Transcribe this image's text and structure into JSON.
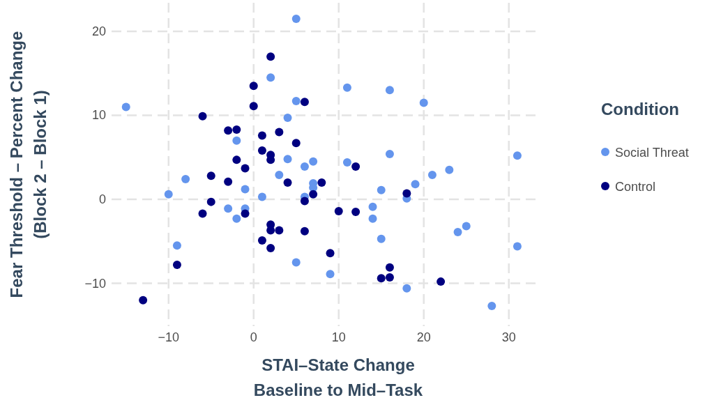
{
  "chart_data": {
    "type": "scatter",
    "xlabel": "STAI–State Change\nBaseline to Mid–Task",
    "ylabel": "Fear Threshold – Percent Change\n(Block 2 – Block 1)",
    "legend_title": "Condition",
    "legend": "right",
    "grid": true,
    "marker": "circle",
    "xlim": [
      -16.7,
      33.3
    ],
    "xticks": [
      -10,
      0,
      10,
      20,
      30
    ],
    "ylim": [
      -15.1,
      23.4
    ],
    "yticks": [
      -10,
      0,
      10,
      20
    ],
    "series": [
      {
        "name": "Social Threat",
        "color": "#6495ed",
        "x": [
          -15,
          5,
          2,
          11,
          16,
          20,
          5,
          4,
          -2,
          4,
          7,
          11,
          16,
          31,
          3,
          6,
          23,
          21,
          19,
          15,
          7,
          7,
          -8,
          -10,
          -1,
          1,
          6,
          18,
          -3,
          -1,
          -2,
          14,
          14,
          15,
          24,
          25,
          31,
          -9,
          5,
          9,
          18,
          28
        ],
        "values": [
          11,
          21.5,
          14.5,
          13.3,
          13,
          11.5,
          11.7,
          9.7,
          7,
          4.8,
          4.5,
          4.4,
          5.4,
          5.2,
          2.9,
          3.9,
          3.5,
          2.9,
          1.8,
          1.1,
          1.9,
          1.4,
          2.4,
          0.6,
          1.2,
          0.3,
          0.3,
          0.1,
          -1.1,
          -1.1,
          -2.3,
          -0.9,
          -2.3,
          -4.7,
          -3.9,
          -3.2,
          -5.6,
          -5.5,
          -7.5,
          -8.9,
          -10.6,
          -12.7
        ]
      },
      {
        "name": "Control",
        "color": "#000080",
        "x": [
          2,
          0,
          0,
          6,
          -6,
          -3,
          -2,
          1,
          3,
          5,
          1,
          2,
          2,
          -2,
          -1,
          -5,
          -3,
          4,
          12,
          8,
          7,
          6,
          18,
          -5,
          -6,
          -1,
          10,
          12,
          2,
          2,
          3,
          6,
          1,
          2,
          9,
          16,
          15,
          16,
          22,
          -9,
          -13
        ],
        "values": [
          17,
          13.5,
          11.1,
          11.6,
          9.9,
          8.2,
          8.3,
          7.6,
          8,
          6.7,
          5.8,
          5.3,
          4.7,
          4.7,
          3.7,
          2.8,
          2.1,
          2,
          3.9,
          2,
          0.6,
          -0.2,
          0.7,
          -0.3,
          -1.7,
          -1.7,
          -1.4,
          -1.5,
          -3,
          -3.7,
          -3.7,
          -3.8,
          -4.9,
          -5.8,
          -6.4,
          -8.1,
          -9.4,
          -9.3,
          -9.8,
          -7.8,
          -12
        ]
      }
    ]
  }
}
